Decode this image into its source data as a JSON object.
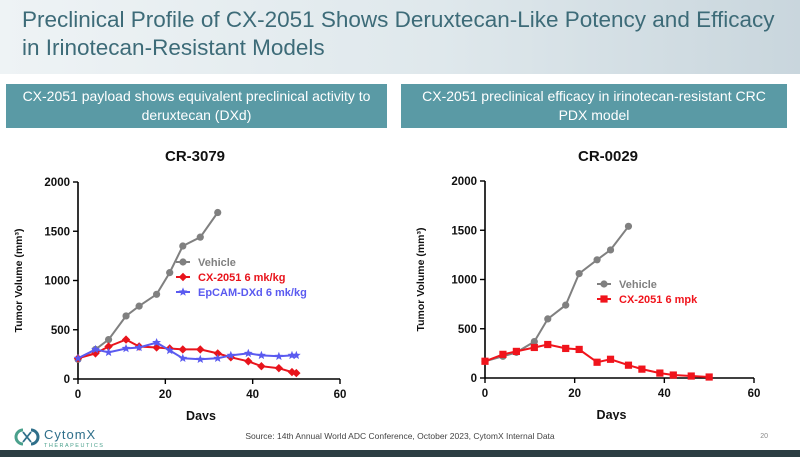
{
  "slide": {
    "title": "Preclinical Profile of CX-2051 Shows Deruxtecan-Like Potency and Efficacy in Irinotecan-Resistant Models",
    "panel_left": "CX-2051 payload shows equivalent preclinical activity to deruxtecan (DXd)",
    "panel_right": "CX-2051 preclinical efficacy in irinotecan-resistant CRC PDX model",
    "source": "Source: 14th Annual World ADC Conference, October 2023, CytomX Internal Data",
    "page_number": "20",
    "logo_name": "CytomX",
    "logo_sub": "THERAPEUTICS"
  },
  "chart_data": [
    {
      "type": "line",
      "title": "CR-3079",
      "xlabel": "Days",
      "ylabel": "Tumor Volume (mm³)",
      "xlim": [
        0,
        60
      ],
      "ylim": [
        0,
        2000
      ],
      "xticks": [
        0,
        20,
        40,
        60
      ],
      "yticks": [
        0,
        500,
        1000,
        1500,
        2000
      ],
      "legend_position": "center-right",
      "series": [
        {
          "name": "Vehicle",
          "color": "#808080",
          "marker": "circle",
          "x": [
            0,
            4,
            7,
            11,
            14,
            18,
            21,
            24,
            28,
            32
          ],
          "y": [
            200,
            300,
            400,
            640,
            740,
            860,
            1080,
            1350,
            1440,
            1690
          ]
        },
        {
          "name": "CX-2051 6 mk/kg",
          "color": "#e8141c",
          "marker": "diamond",
          "x": [
            0,
            4,
            7,
            11,
            14,
            18,
            21,
            24,
            28,
            32,
            35,
            39,
            42,
            46,
            49,
            50
          ],
          "y": [
            210,
            260,
            330,
            400,
            330,
            320,
            310,
            300,
            300,
            260,
            220,
            180,
            130,
            110,
            70,
            60
          ]
        },
        {
          "name": "EpCAM-DXd 6 mk/kg",
          "color": "#5a5af0",
          "marker": "star",
          "x": [
            0,
            4,
            7,
            11,
            14,
            18,
            21,
            24,
            28,
            32,
            35,
            39,
            42,
            46,
            49,
            50
          ],
          "y": [
            210,
            300,
            270,
            310,
            320,
            370,
            290,
            210,
            200,
            210,
            240,
            260,
            240,
            230,
            240,
            240
          ]
        }
      ]
    },
    {
      "type": "line",
      "title": "CR-0029",
      "xlabel": "Days",
      "ylabel": "Tumor Volume (mm³)",
      "xlim": [
        0,
        60
      ],
      "ylim": [
        0,
        2000
      ],
      "xticks": [
        0,
        20,
        40,
        60
      ],
      "yticks": [
        0,
        500,
        1000,
        1500,
        2000
      ],
      "legend_position": "center-right",
      "series": [
        {
          "name": "Vehicle",
          "color": "#808080",
          "marker": "circle",
          "x": [
            0,
            4,
            7,
            11,
            14,
            18,
            21,
            25,
            28,
            32
          ],
          "y": [
            170,
            220,
            260,
            370,
            600,
            740,
            1060,
            1200,
            1300,
            1540
          ]
        },
        {
          "name": "CX-2051 6 mpk",
          "color": "#f0141c",
          "marker": "square",
          "x": [
            0,
            4,
            7,
            11,
            14,
            18,
            21,
            25,
            28,
            32,
            35,
            39,
            42,
            46,
            50
          ],
          "y": [
            170,
            240,
            270,
            310,
            340,
            300,
            290,
            160,
            190,
            130,
            90,
            50,
            30,
            20,
            10
          ]
        }
      ]
    }
  ]
}
